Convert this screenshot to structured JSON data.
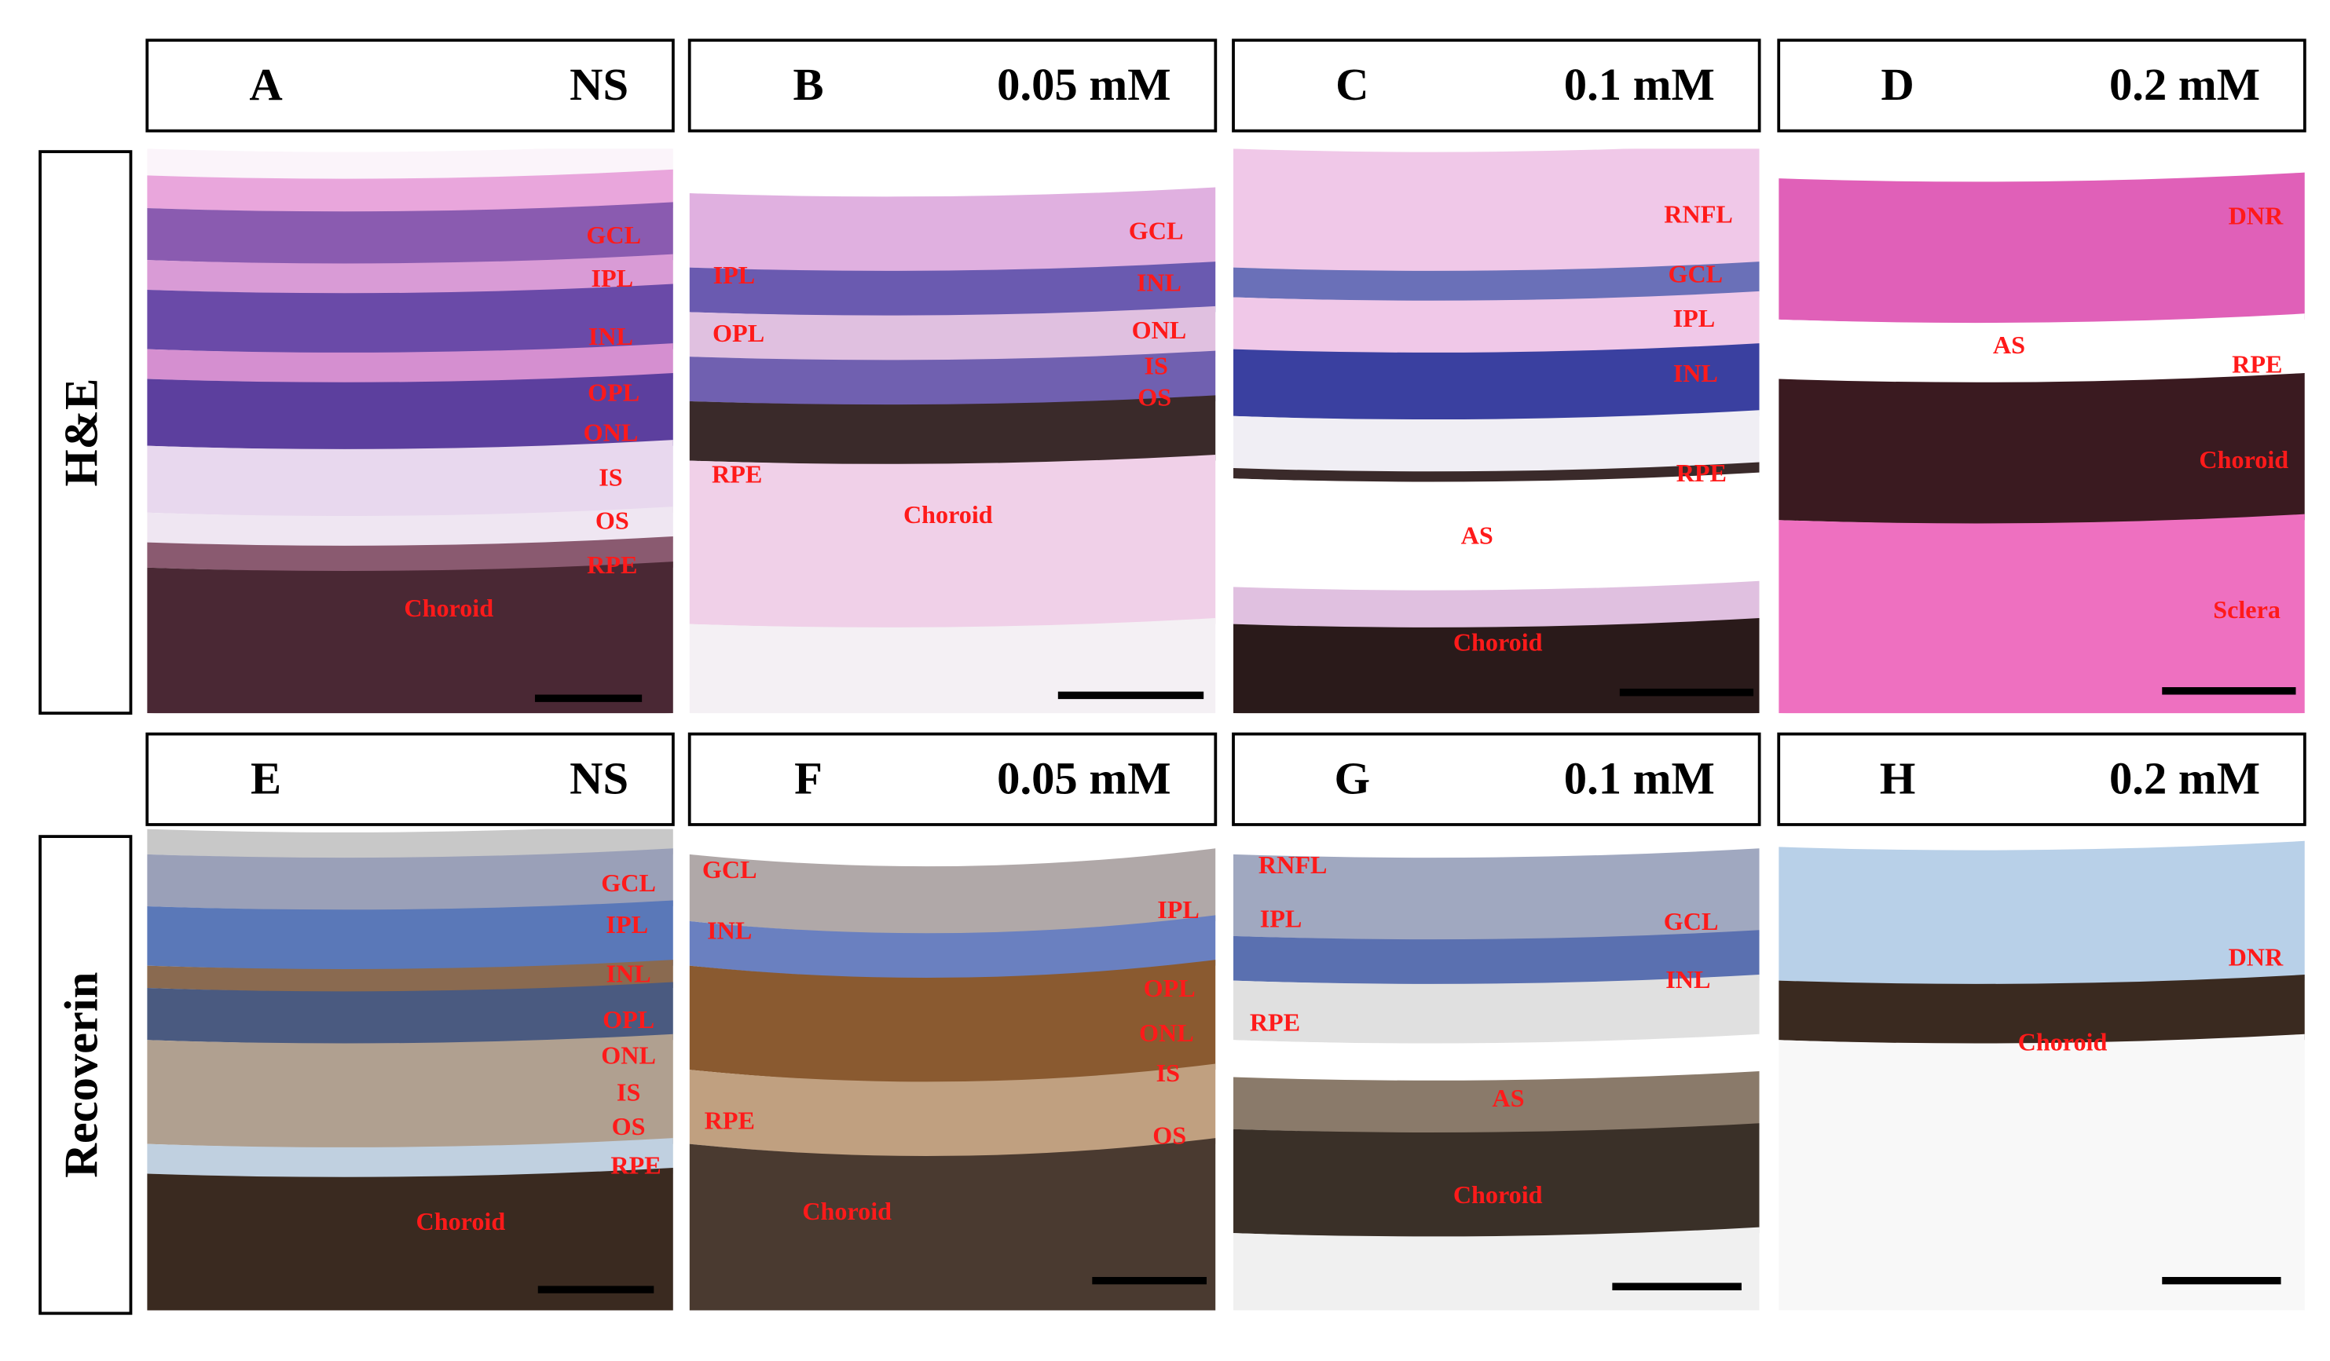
{
  "row_labels": [
    "H&E",
    "Recoverin"
  ],
  "panels": [
    {
      "letter": "A",
      "condition": "NS",
      "labels": [
        "GCL",
        "IPL",
        "INL",
        "OPL",
        "ONL",
        "IS",
        "OS",
        "RPE",
        "Choroid"
      ]
    },
    {
      "letter": "B",
      "condition": "0.05 mM",
      "labels": [
        "GCL",
        "IPL",
        "INL",
        "OPL",
        "ONL",
        "IS",
        "OS",
        "RPE",
        "Choroid"
      ]
    },
    {
      "letter": "C",
      "condition": "0.1 mM",
      "labels": [
        "RNFL",
        "GCL",
        "IPL",
        "INL",
        "RPE",
        "AS",
        "Choroid"
      ]
    },
    {
      "letter": "D",
      "condition": "0.2 mM",
      "labels": [
        "DNR",
        "AS",
        "RPE",
        "Choroid",
        "Sclera"
      ]
    },
    {
      "letter": "E",
      "condition": "NS",
      "labels": [
        "GCL",
        "IPL",
        "INL",
        "OPL",
        "ONL",
        "IS",
        "OS",
        "RPE",
        "Choroid"
      ]
    },
    {
      "letter": "F",
      "condition": "0.05 mM",
      "labels": [
        "GCL",
        "IPL",
        "INL",
        "OPL",
        "ONL",
        "IS",
        "RPE",
        "OS",
        "Choroid"
      ]
    },
    {
      "letter": "G",
      "condition": "0.1 mM",
      "labels": [
        "RNFL",
        "IPL",
        "GCL",
        "INL",
        "RPE",
        "AS",
        "Choroid"
      ]
    },
    {
      "letter": "H",
      "condition": "0.2 mM",
      "labels": [
        "DNR",
        "Choroid"
      ]
    }
  ]
}
